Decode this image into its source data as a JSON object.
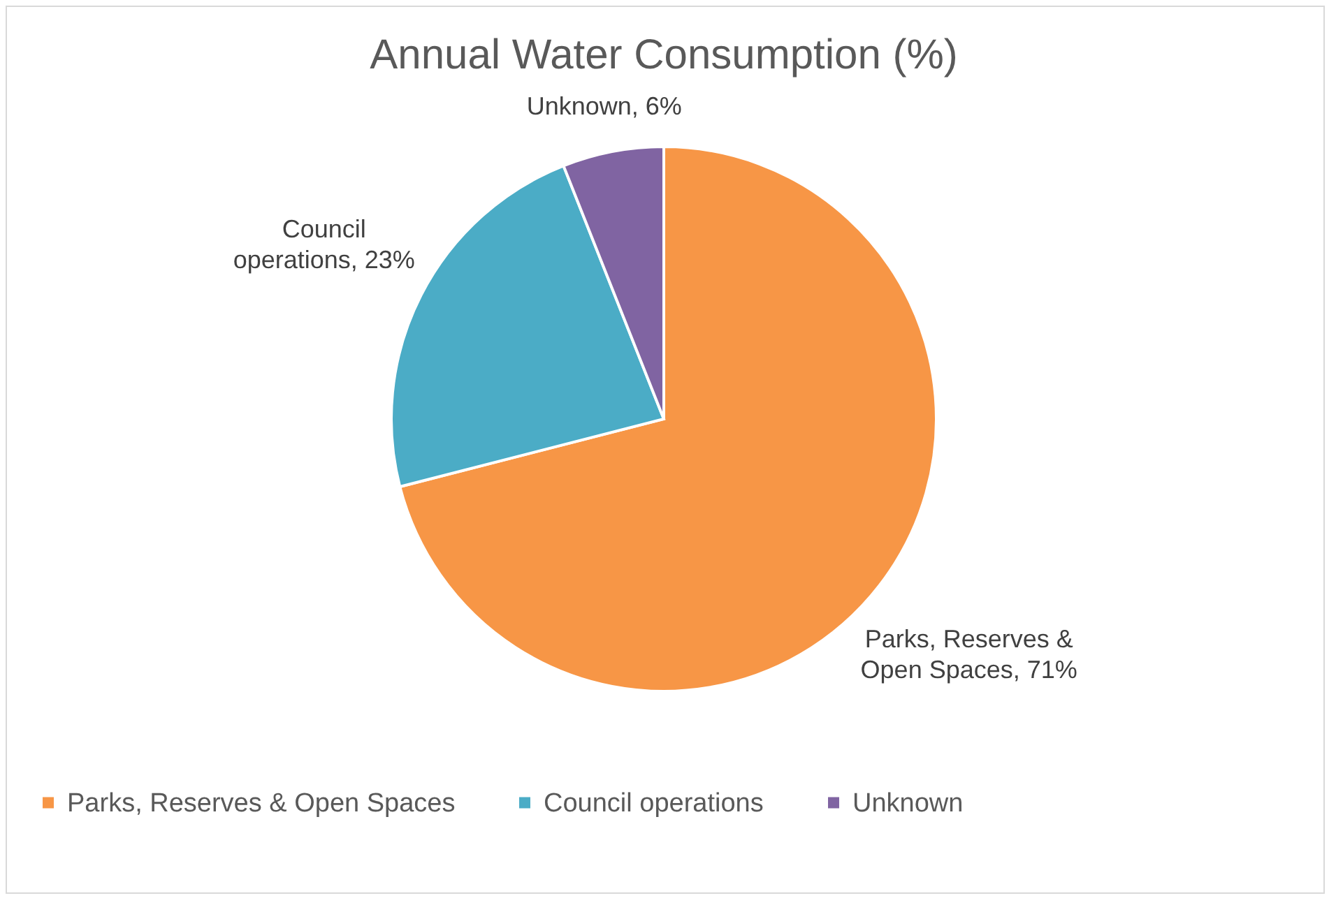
{
  "chart_data": {
    "type": "pie",
    "title": "Annual Water Consumption (%)",
    "categories": [
      "Parks, Reserves & Open Spaces",
      "Council operations",
      "Unknown"
    ],
    "values": [
      71,
      23,
      6
    ],
    "colors": [
      "#f79646",
      "#4bacc6",
      "#8064a2"
    ],
    "value_labels": [
      "Parks, Reserves & Open Spaces, 71%",
      "Council operations, 23%",
      "Unknown, 6%"
    ],
    "legend": "bottom"
  }
}
